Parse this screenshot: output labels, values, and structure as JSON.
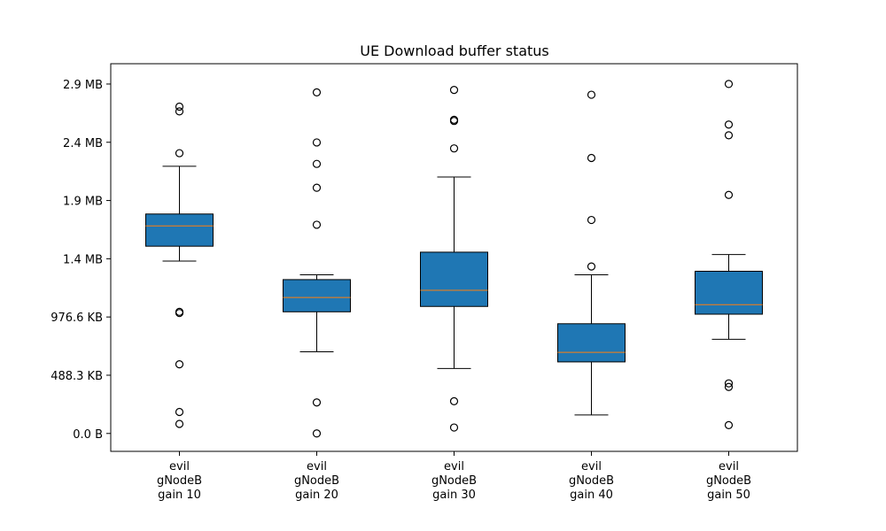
{
  "chart_data": {
    "type": "box",
    "title": "UE Download buffer status",
    "xlabel": "",
    "ylabel": "",
    "ylim": [
      -150,
      3100
    ],
    "y_ticks": [
      {
        "value": 0,
        "label": "0.0 B"
      },
      {
        "value": 488.3,
        "label": "488.3 KB"
      },
      {
        "value": 976.6,
        "label": "976.6 KB"
      },
      {
        "value": 1464.8,
        "label": "1.4 MB"
      },
      {
        "value": 1953.1,
        "label": "1.9 MB"
      },
      {
        "value": 2441.4,
        "label": "2.4 MB"
      },
      {
        "value": 2929.7,
        "label": "2.9 MB"
      }
    ],
    "y_unit": "KB",
    "grid": false,
    "colors": {
      "box_fill": "#1f77b4",
      "median": "#ff7f0e",
      "stroke": "#000000"
    },
    "categories": [
      [
        "evil",
        "gNodeB",
        "gain 10"
      ],
      [
        "evil",
        "gNodeB",
        "gain 20"
      ],
      [
        "evil",
        "gNodeB",
        "gain 30"
      ],
      [
        "evil",
        "gNodeB",
        "gain 40"
      ],
      [
        "evil",
        "gNodeB",
        "gain 50"
      ]
    ],
    "boxes": [
      {
        "whisker_low": 1445,
        "q1": 1570,
        "median": 1740,
        "q3": 1840,
        "whisker_high": 2240,
        "outliers": [
          2740,
          2700,
          2350,
          1020,
          1010,
          580,
          180,
          80
        ]
      },
      {
        "whisker_low": 685,
        "q1": 1020,
        "median": 1140,
        "q3": 1290,
        "whisker_high": 1330,
        "outliers": [
          2860,
          2440,
          2260,
          2060,
          1750,
          260,
          0
        ]
      },
      {
        "whisker_low": 545,
        "q1": 1065,
        "median": 1200,
        "q3": 1520,
        "whisker_high": 2150,
        "outliers": [
          2880,
          2630,
          2620,
          2390,
          270,
          50
        ]
      },
      {
        "whisker_low": 155,
        "q1": 600,
        "median": 680,
        "q3": 920,
        "whisker_high": 1330,
        "outliers": [
          2840,
          2310,
          1790,
          1400
        ]
      },
      {
        "whisker_low": 790,
        "q1": 1000,
        "median": 1080,
        "q3": 1360,
        "whisker_high": 1500,
        "outliers": [
          2930,
          2590,
          2500,
          2000,
          420,
          390,
          70
        ]
      }
    ]
  }
}
